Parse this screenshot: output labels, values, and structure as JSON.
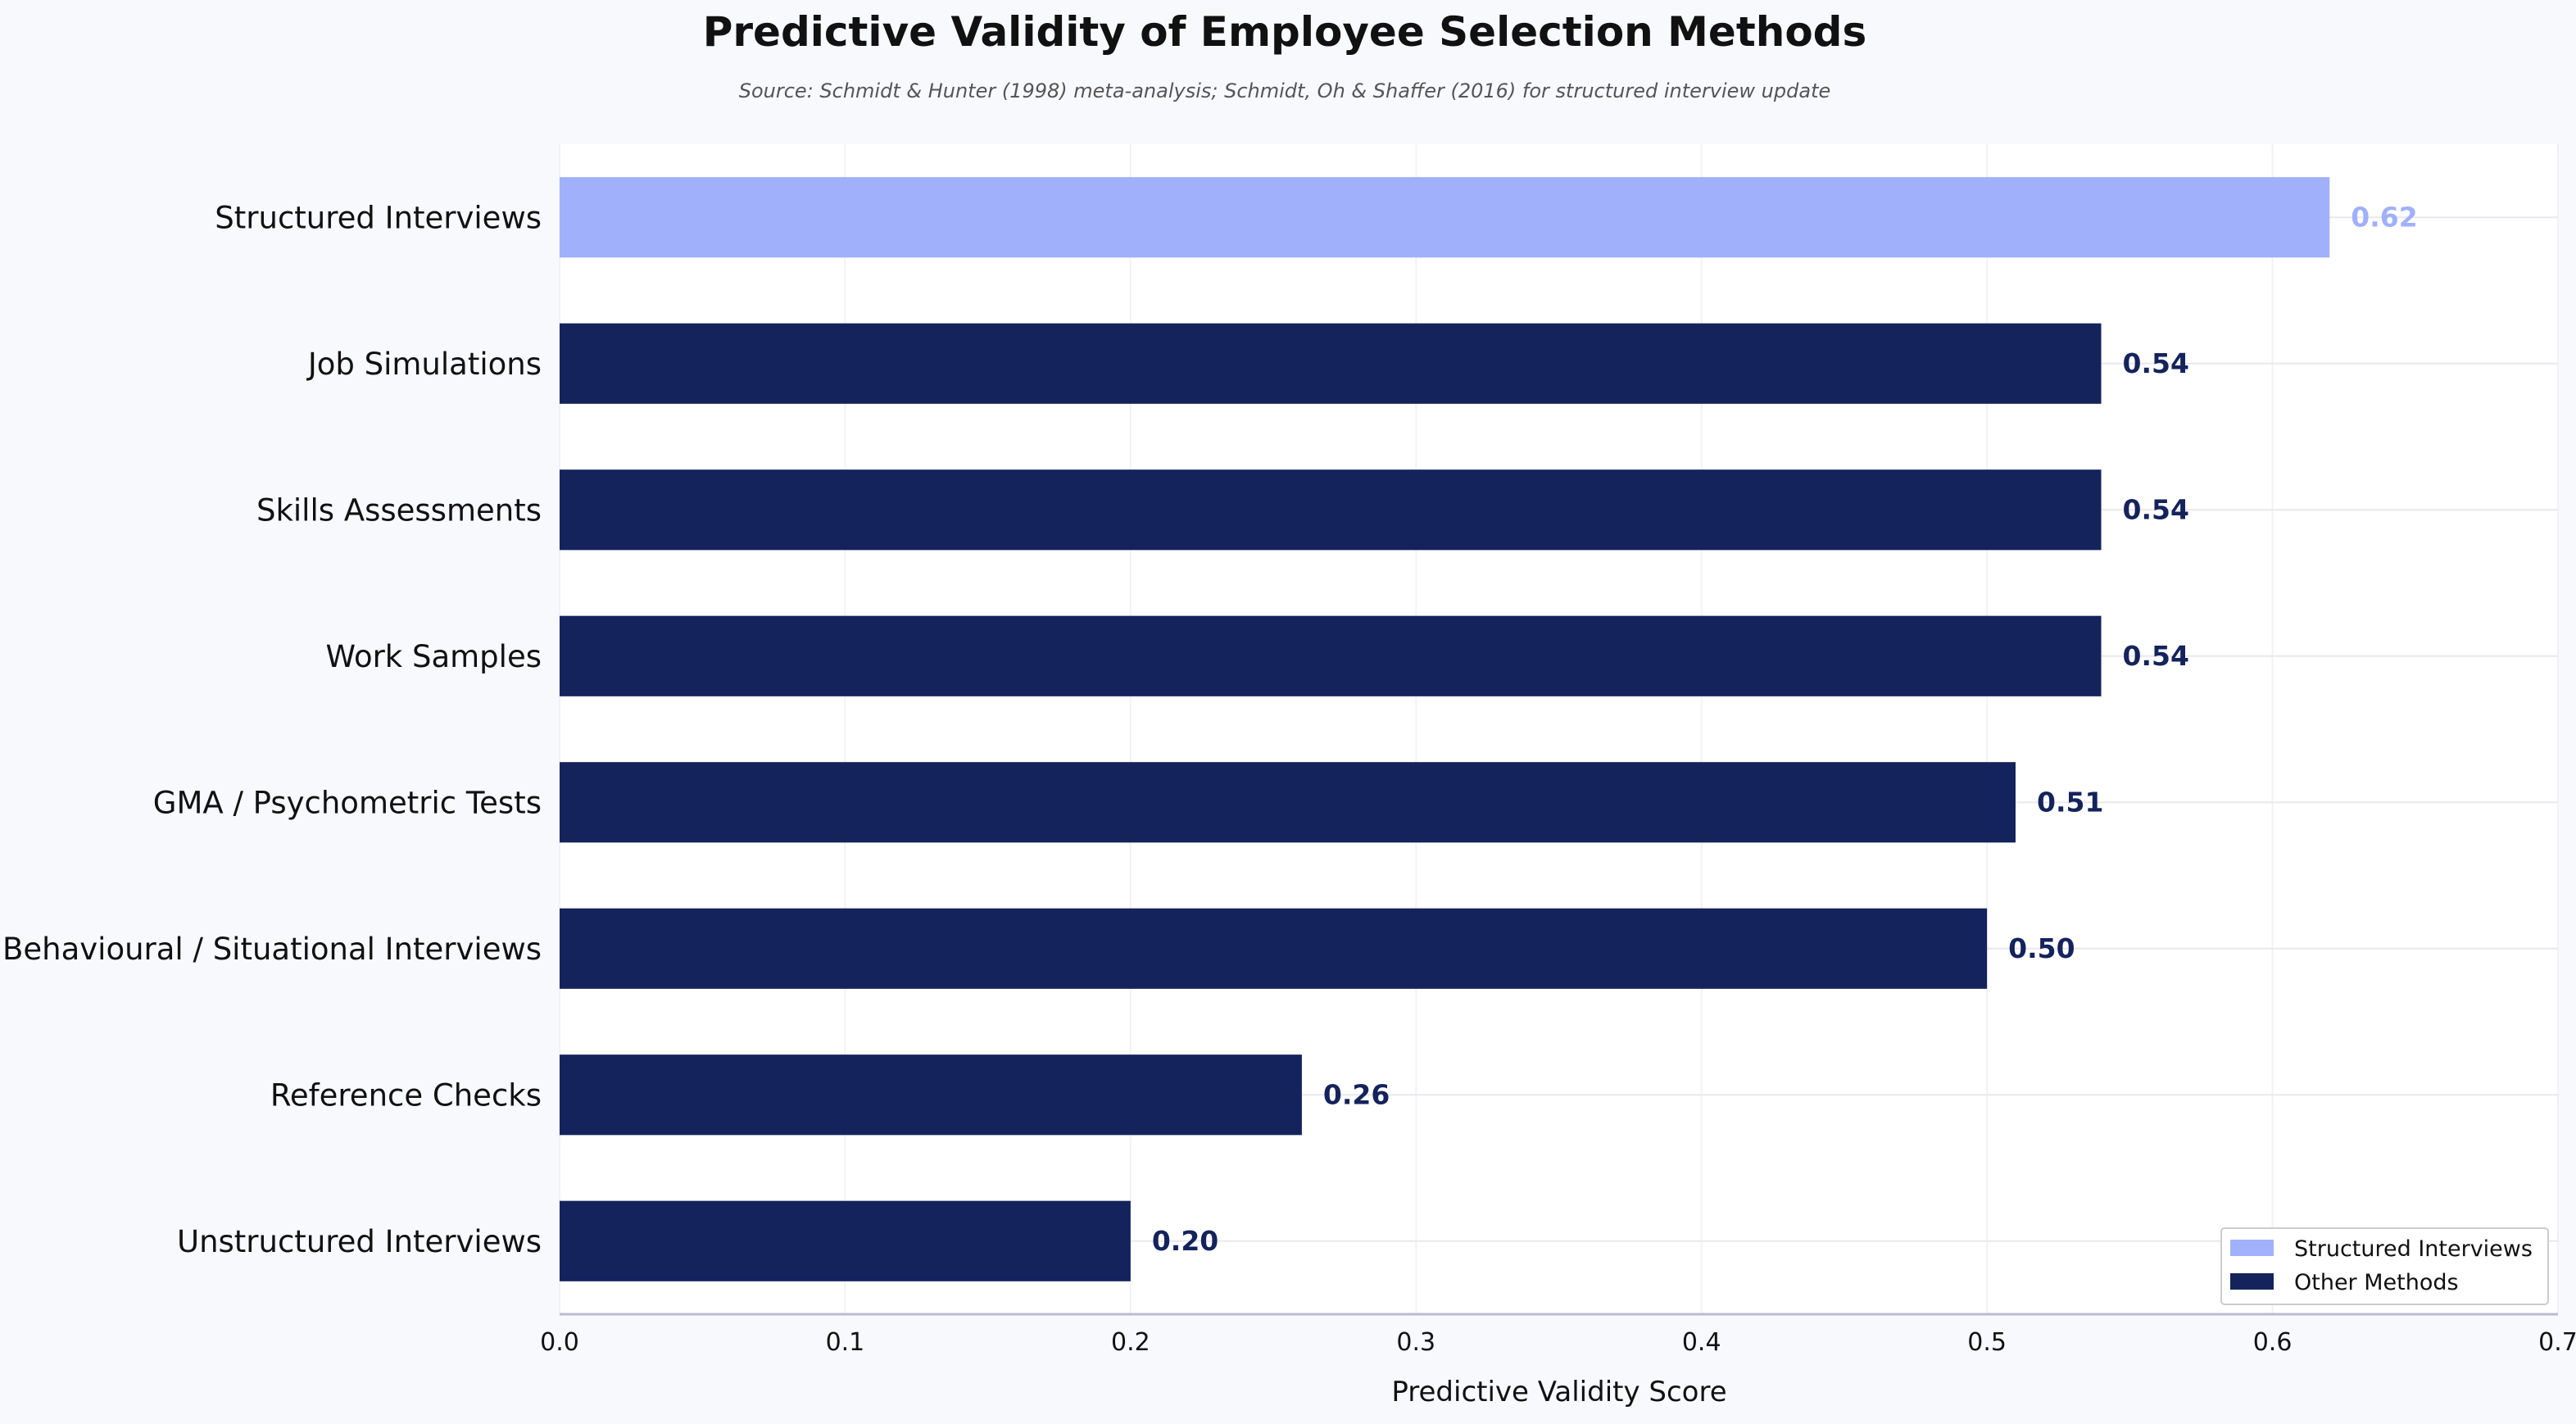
{
  "chart_data": {
    "type": "bar",
    "orientation": "horizontal",
    "title": "Predictive Validity of Employee Selection Methods",
    "subtitle": "Source: Schmidt & Hunter (1998) meta-analysis; Schmidt, Oh & Shaffer (2016) for structured interview update",
    "xlabel": "Predictive Validity Score",
    "ylabel": "",
    "xlim": [
      0,
      0.7
    ],
    "xticks": [
      "0.0",
      "0.1",
      "0.2",
      "0.3",
      "0.4",
      "0.5",
      "0.6",
      "0.7"
    ],
    "grid": true,
    "legend_position": "bottom-right",
    "categories": [
      "Structured Interviews",
      "Job Simulations",
      "Skills Assessments",
      "Work Samples",
      "GMA / Psychometric Tests",
      "Behavioural / Situational Interviews",
      "Reference Checks",
      "Unstructured Interviews"
    ],
    "values": [
      0.62,
      0.54,
      0.54,
      0.54,
      0.51,
      0.5,
      0.26,
      0.2
    ],
    "value_labels": [
      "0.62",
      "0.54",
      "0.54",
      "0.54",
      "0.51",
      "0.50",
      "0.26",
      "0.20"
    ],
    "groups": [
      "Structured Interviews",
      "Other Methods",
      "Other Methods",
      "Other Methods",
      "Other Methods",
      "Other Methods",
      "Other Methods",
      "Other Methods"
    ],
    "legend": [
      {
        "name": "Structured Interviews",
        "color": "#a0b0fa"
      },
      {
        "name": "Other Methods",
        "color": "#14235c"
      }
    ],
    "colors": {
      "highlight": "#a0b0fa",
      "default": "#14235c"
    }
  }
}
